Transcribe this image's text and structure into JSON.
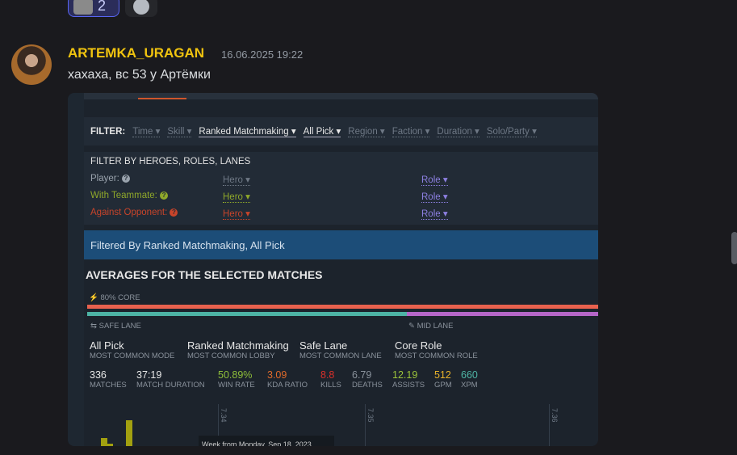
{
  "reactions": [
    {
      "emoji": "dog-emoji",
      "count": "2"
    }
  ],
  "add_reaction_icon": "smile-plus-icon",
  "message": {
    "author": "ARTEMKA_URAGAN",
    "author_color": "#f1c40f",
    "timestamp": "16.06.2025 19:22",
    "text": "хахаха, вс 53 у Артёмки"
  },
  "embed": {
    "filter": {
      "label": "FILTER:",
      "items": [
        "Time",
        "Skill",
        "Ranked Matchmaking",
        "All Pick",
        "Region",
        "Faction",
        "Duration",
        "Solo/Party"
      ],
      "active": [
        "Ranked Matchmaking",
        "All Pick"
      ]
    },
    "heroes_filter": {
      "title": "FILTER BY HEROES, ROLES, LANES",
      "rows": [
        {
          "label": "Player:",
          "hero": "Hero",
          "role": "Role",
          "color": "#9aa3ad"
        },
        {
          "label": "With Teammate:",
          "hero": "Hero",
          "role": "Role",
          "color": "#8fa82a"
        },
        {
          "label": "Against Opponent:",
          "hero": "Hero",
          "role": "Role",
          "color": "#c8442a"
        }
      ]
    },
    "filtered_by": "Filtered By Ranked Matchmaking, All Pick",
    "averages_title": "AVERAGES FOR THE SELECTED MATCHES",
    "core_label": "80% CORE",
    "core_fraction": 0.8,
    "safe_lane_label": "SAFE LANE",
    "mid_lane_label": "MID LANE",
    "modes": [
      {
        "value": "All Pick",
        "key": "MOST COMMON MODE"
      },
      {
        "value": "Ranked Matchmaking",
        "key": "MOST COMMON LOBBY"
      },
      {
        "value": "Safe Lane",
        "key": "MOST COMMON LANE"
      },
      {
        "value": "Core Role",
        "key": "MOST COMMON ROLE"
      }
    ],
    "stats": [
      {
        "value": "336",
        "key": "MATCHES",
        "color": "#e8e8e8"
      },
      {
        "value": "37:19",
        "key": "MATCH DURATION",
        "color": "#e8e8e8"
      },
      {
        "value": "50.89%",
        "key": "WIN RATE",
        "color": "#8fbf3a"
      },
      {
        "value": "3.09",
        "key": "KDA RATIO",
        "color": "#e06a2a"
      },
      {
        "value": "8.8",
        "key": "KILLS",
        "color": "#d9302a"
      },
      {
        "value": "6.79",
        "key": "DEATHS",
        "color": "#8a929c"
      },
      {
        "value": "12.19",
        "key": "ASSISTS",
        "color": "#9cc43a"
      },
      {
        "value": "512",
        "key": "GPM",
        "color": "#e8b22a"
      },
      {
        "value": "660",
        "key": "XPM",
        "color": "#4fb5a5"
      }
    ],
    "patches": [
      "7.34",
      "7.35",
      "7.36"
    ],
    "tooltip": "Week from Monday, Sep 18, 2023"
  }
}
